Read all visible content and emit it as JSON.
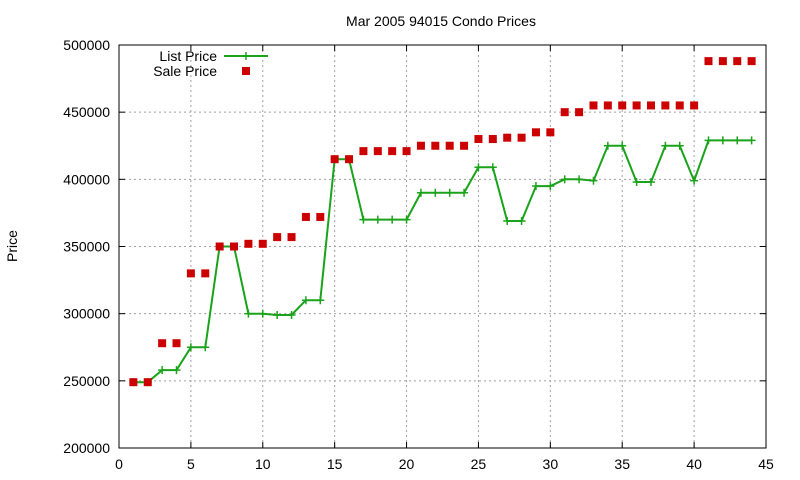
{
  "chart_data": {
    "type": "line",
    "title": "Mar 2005 94015 Condo Prices",
    "xlabel": "",
    "ylabel": "Price",
    "xlim": [
      0,
      45
    ],
    "ylim": [
      200000,
      500000
    ],
    "xticks": [
      0,
      5,
      10,
      15,
      20,
      25,
      30,
      35,
      40,
      45
    ],
    "yticks": [
      200000,
      250000,
      300000,
      350000,
      400000,
      450000,
      500000
    ],
    "grid": true,
    "legend_position": "top-left",
    "series": [
      {
        "name": "List Price",
        "style": "line+cross",
        "color": "#1aa31a",
        "x": [
          1,
          2,
          3,
          4,
          5,
          6,
          7,
          8,
          9,
          10,
          11,
          12,
          13,
          14,
          15,
          16,
          17,
          18,
          19,
          20,
          21,
          22,
          23,
          24,
          25,
          26,
          27,
          28,
          29,
          30,
          31,
          32,
          33,
          34,
          35,
          36,
          37,
          38,
          39,
          40,
          41,
          42,
          43,
          44
        ],
        "y": [
          249000,
          249000,
          258000,
          258000,
          275000,
          275000,
          350000,
          350000,
          300000,
          300000,
          299000,
          299000,
          310000,
          310000,
          415000,
          415000,
          370000,
          370000,
          370000,
          370000,
          390000,
          390000,
          390000,
          390000,
          409000,
          409000,
          369000,
          369000,
          395000,
          395000,
          400000,
          400000,
          399000,
          425000,
          425000,
          398000,
          398000,
          425000,
          425000,
          399000,
          429000,
          429000,
          429000,
          429000
        ]
      },
      {
        "name": "Sale Price",
        "style": "square",
        "color": "#cc0000",
        "x": [
          1,
          2,
          3,
          4,
          5,
          6,
          7,
          8,
          9,
          10,
          11,
          12,
          13,
          14,
          15,
          16,
          17,
          18,
          19,
          20,
          21,
          22,
          23,
          24,
          25,
          26,
          27,
          28,
          29,
          30,
          31,
          32,
          33,
          34,
          35,
          36,
          37,
          38,
          39,
          40,
          41,
          42,
          43,
          44
        ],
        "y": [
          249000,
          249000,
          278000,
          278000,
          330000,
          330000,
          350000,
          350000,
          352000,
          352000,
          357000,
          357000,
          372000,
          372000,
          415000,
          415000,
          421000,
          421000,
          421000,
          421000,
          425000,
          425000,
          425000,
          425000,
          430000,
          430000,
          431000,
          431000,
          435000,
          435000,
          450000,
          450000,
          455000,
          455000,
          455000,
          455000,
          455000,
          455000,
          455000,
          455000,
          488000,
          488000,
          488000,
          488000
        ]
      }
    ]
  }
}
